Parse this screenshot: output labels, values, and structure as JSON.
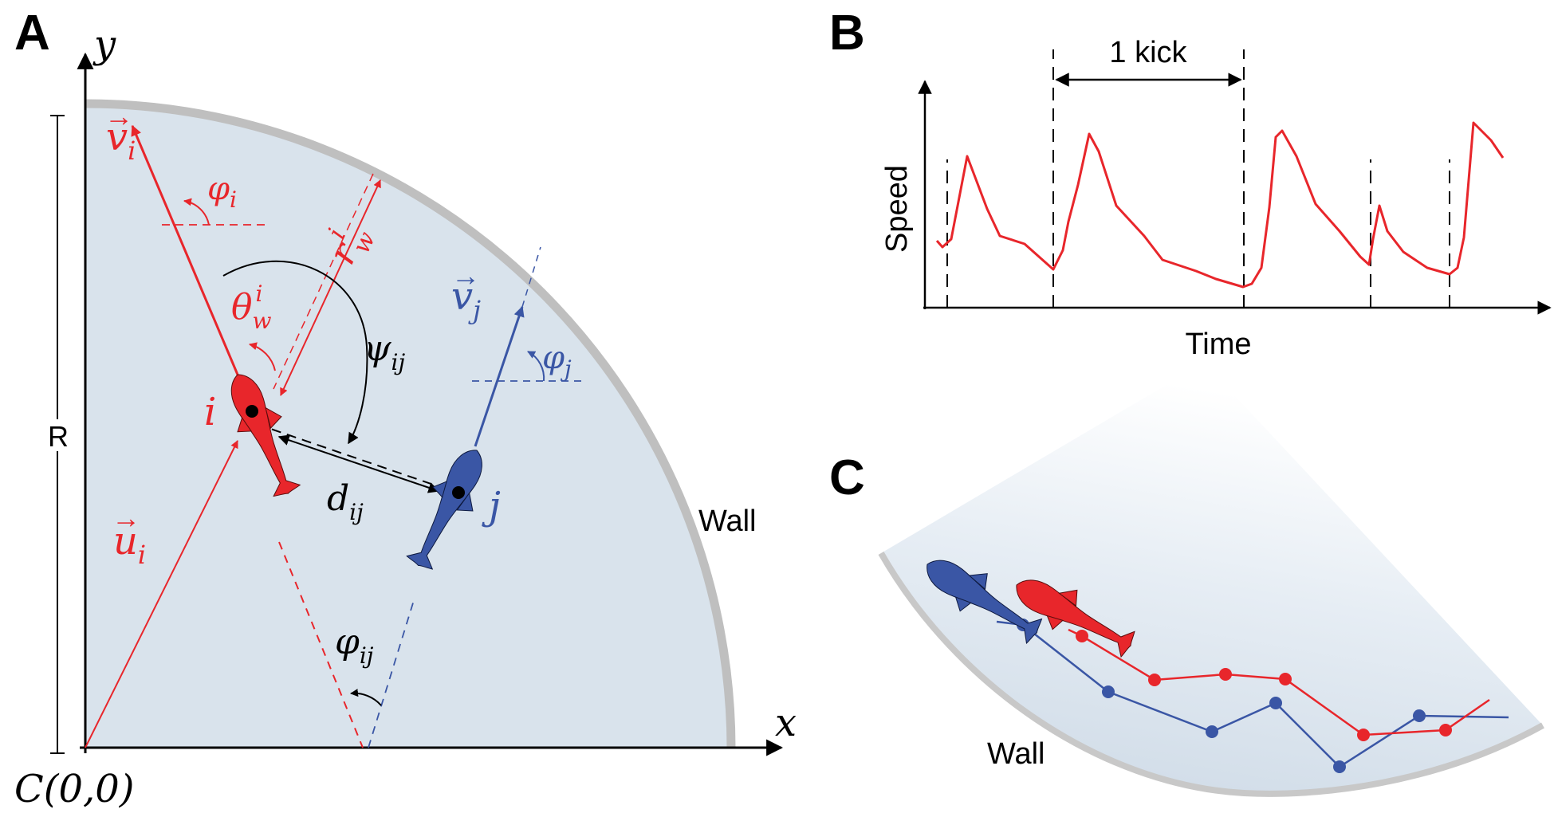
{
  "panels": {
    "a": {
      "letter": "A"
    },
    "b": {
      "letter": "B"
    },
    "c": {
      "letter": "C"
    }
  },
  "panel_a": {
    "axis_x": "x",
    "axis_y": "y",
    "origin": "C(0,0)",
    "radius_label": "R",
    "wall_label": "Wall",
    "fish_i_label": "i",
    "fish_j_label": "j",
    "labels": {
      "v_i": "v",
      "v_i_sub": "i",
      "v_j": "v",
      "v_j_sub": "j",
      "u_i": "u",
      "u_i_sub": "i",
      "phi_i": "φ",
      "phi_i_sub": "i",
      "phi_j": "φ",
      "phi_j_sub": "j",
      "r_w": "r",
      "r_w_sub": "w",
      "r_w_sup": "i",
      "theta_w": "θ",
      "theta_w_sub": "w",
      "theta_w_sup": "i",
      "psi_ij": "ψ",
      "psi_ij_sub": "ij",
      "d_ij": "d",
      "d_ij_sub": "ij",
      "phi_ij": "φ",
      "phi_ij_sub": "ij"
    },
    "colors": {
      "fish_i": "#e8262b",
      "fish_j": "#3a56a5",
      "arena_fill": "#d9e3ec",
      "wall": "#bfbfbf"
    }
  },
  "panel_b": {
    "ylabel": "Speed",
    "xlabel": "Time",
    "kick_label": "1 kick"
  },
  "panel_c": {
    "wall_label": "Wall"
  }
}
